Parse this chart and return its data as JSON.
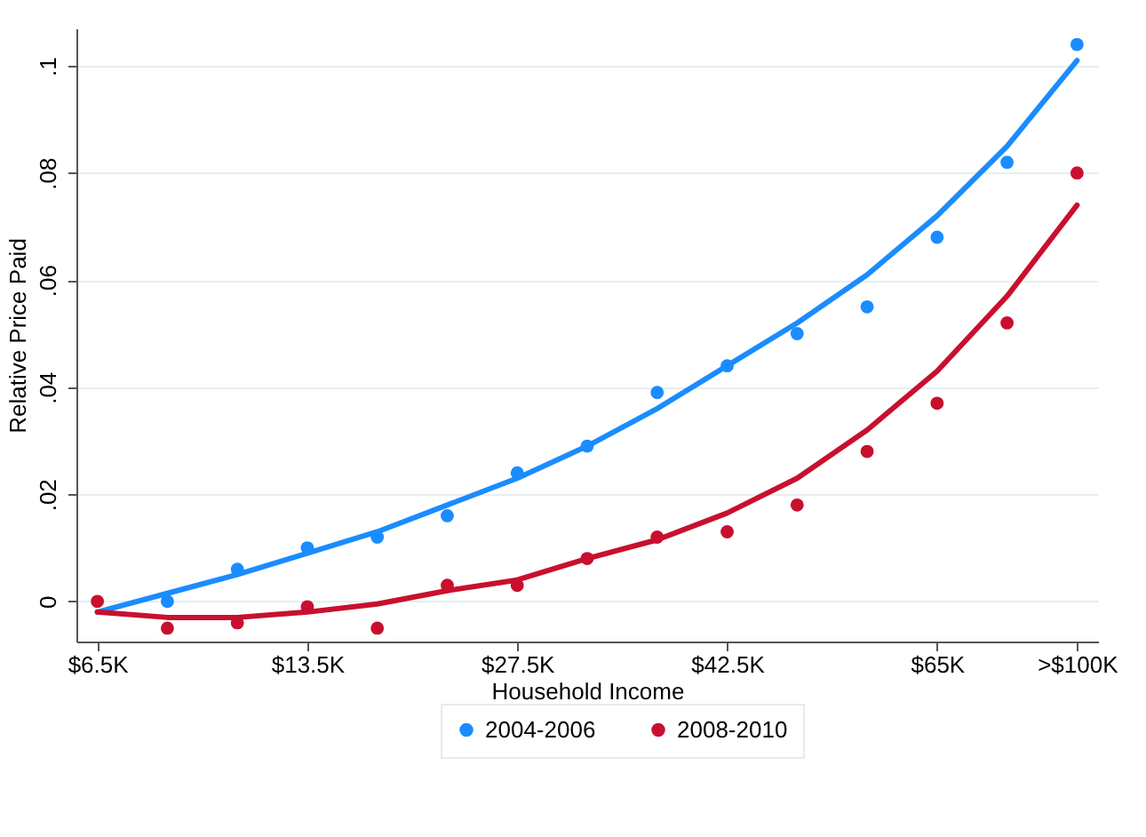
{
  "chart_data": {
    "type": "scatter",
    "xlabel": "Household Income",
    "ylabel": "Relative Price Paid",
    "categories": [
      "$6.5K",
      null,
      null,
      "$13.5K",
      null,
      null,
      "$27.5K",
      null,
      null,
      "$42.5K",
      null,
      null,
      "$65K",
      null,
      ">$100K"
    ],
    "series": [
      {
        "name": "2004-2006",
        "color": "#1a8cff",
        "values": [
          null,
          0.0,
          0.006,
          0.01,
          0.012,
          0.016,
          0.024,
          0.029,
          0.039,
          0.044,
          0.05,
          0.055,
          0.068,
          0.082,
          0.104
        ]
      },
      {
        "name": "2008-2010",
        "color": "#c8102e",
        "values": [
          0.0,
          -0.005,
          -0.004,
          -0.001,
          -0.005,
          0.003,
          0.003,
          0.008,
          0.012,
          0.013,
          0.018,
          0.028,
          0.037,
          0.052,
          0.08
        ]
      },
      {
        "type": "line",
        "marker": "none",
        "color": "#1a8cff",
        "values": [
          -0.002,
          0.0015,
          0.005,
          0.009,
          0.013,
          0.018,
          0.023,
          0.029,
          0.036,
          0.044,
          0.052,
          0.061,
          0.072,
          0.085,
          0.101
        ]
      },
      {
        "type": "line",
        "marker": "none",
        "color": "#c8102e",
        "values": [
          -0.002,
          -0.003,
          -0.003,
          -0.002,
          -0.0005,
          0.002,
          0.004,
          0.008,
          0.0115,
          0.0165,
          0.023,
          0.032,
          0.043,
          0.057,
          0.074
        ]
      }
    ],
    "ylim": [
      -0.0075,
      0.107
    ],
    "yticks": [
      {
        "value": 0,
        "label": "0"
      },
      {
        "value": 0.02,
        "label": ".02"
      },
      {
        "value": 0.04,
        "label": ".04"
      },
      {
        "value": 0.06,
        "label": ".06"
      },
      {
        "value": 0.08,
        "label": ".08"
      },
      {
        "value": 0.1,
        "label": ".1"
      }
    ],
    "grid": "y",
    "legend": "bottom",
    "marker": "circle"
  }
}
